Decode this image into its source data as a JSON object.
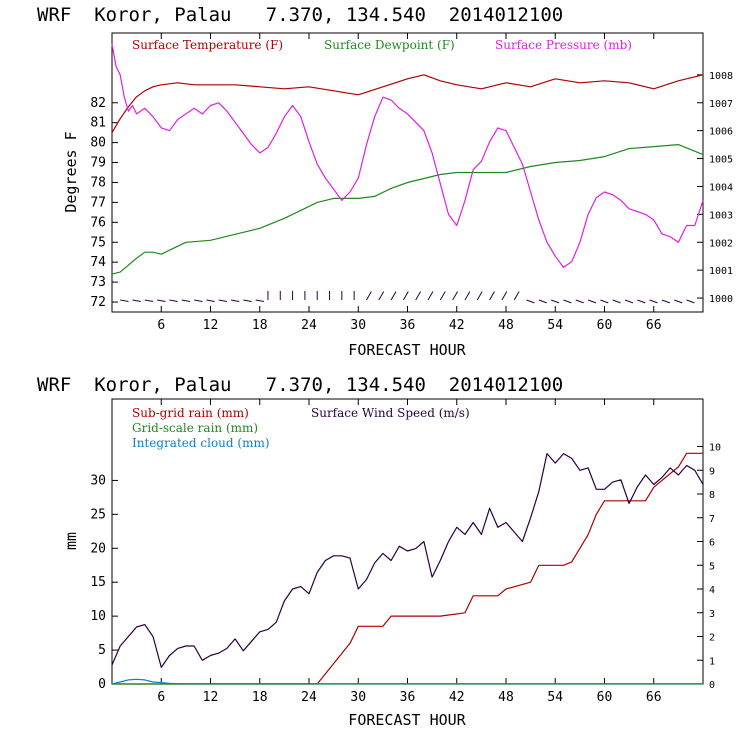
{
  "colors": {
    "temperature": "#b00000",
    "dewpoint": "#1f8a1f",
    "pressure": "#e020e0",
    "wind": "#2a0040",
    "subgrid_rain": "#b00000",
    "gridscale_rain": "#1f8a1f",
    "cloud": "#0a80d0"
  },
  "chart_data": [
    {
      "type": "line",
      "title": "WRF  Koror, Palau   7.370, 134.540  2014012100",
      "xlabel": "FORECAST HOUR",
      "ylabel": "Degrees F",
      "xlim": [
        0,
        72
      ],
      "x_ticks": [
        6,
        12,
        18,
        24,
        30,
        36,
        42,
        48,
        54,
        60,
        66
      ],
      "x_tick_labels": [
        "6",
        "12",
        "18",
        "24",
        "30",
        "36",
        "42",
        "48",
        "54",
        "60",
        "66"
      ],
      "ylim": [
        71.5,
        85.5
      ],
      "y_ticks": [
        72,
        73,
        74,
        75,
        76,
        77,
        78,
        79,
        80,
        81,
        82
      ],
      "y_tick_labels": [
        "72",
        "73",
        "74",
        "75",
        "76",
        "77",
        "78",
        "79",
        "80",
        "81",
        "82"
      ],
      "y2lim": [
        999.5,
        1009.5
      ],
      "y2_ticks": [
        1000,
        1001,
        1002,
        1003,
        1004,
        1005,
        1006,
        1007,
        1008
      ],
      "y2_tick_labels": [
        "1000",
        "1001",
        "1002",
        "1003",
        "1004",
        "1005",
        "1006",
        "1007",
        "1008"
      ],
      "legend": [
        "Surface Temperature (F)",
        "Surface Dewpoint (F)",
        "Surface Pressure (mb)"
      ],
      "grid": false,
      "series": [
        {
          "name": "Surface Temperature (F)",
          "axis": "left",
          "x": [
            0,
            1,
            2,
            3,
            4,
            5,
            6,
            8,
            10,
            12,
            15,
            18,
            21,
            24,
            27,
            30,
            33,
            36,
            38,
            40,
            42,
            45,
            48,
            51,
            54,
            57,
            60,
            63,
            66,
            69,
            72
          ],
          "values": [
            80.5,
            81.2,
            81.8,
            82.3,
            82.6,
            82.8,
            82.9,
            83.0,
            82.9,
            82.9,
            82.9,
            82.8,
            82.7,
            82.8,
            82.6,
            82.4,
            82.8,
            83.2,
            83.4,
            83.1,
            82.9,
            82.7,
            83.0,
            82.8,
            83.2,
            83.0,
            83.1,
            83.0,
            82.7,
            83.1,
            83.4
          ]
        },
        {
          "name": "Surface Dewpoint (F)",
          "axis": "left",
          "x": [
            0,
            1,
            3,
            4,
            5,
            6,
            7,
            9,
            12,
            15,
            18,
            21,
            23,
            25,
            27,
            30,
            32,
            34,
            36,
            38,
            40,
            42,
            45,
            48,
            51,
            54,
            57,
            60,
            63,
            66,
            69,
            72
          ],
          "values": [
            73.4,
            73.5,
            74.2,
            74.5,
            74.5,
            74.4,
            74.6,
            75.0,
            75.1,
            75.4,
            75.7,
            76.2,
            76.6,
            77.0,
            77.2,
            77.2,
            77.3,
            77.7,
            78.0,
            78.2,
            78.4,
            78.5,
            78.5,
            78.5,
            78.8,
            79.0,
            79.1,
            79.3,
            79.7,
            79.8,
            79.9,
            79.4
          ]
        },
        {
          "name": "Surface Pressure (mb)",
          "axis": "right",
          "x": [
            0,
            0.5,
            1,
            1.5,
            2,
            2.5,
            3,
            4,
            5,
            6,
            7,
            8,
            9,
            10,
            11,
            12,
            13,
            14,
            15,
            16,
            17,
            18,
            19,
            20,
            21,
            22,
            23,
            24,
            25,
            26,
            27,
            28,
            29,
            30,
            31,
            32,
            33,
            34,
            35,
            36,
            37,
            38,
            39,
            40,
            41,
            42,
            43,
            44,
            45,
            46,
            47,
            48,
            49,
            50,
            51,
            52,
            53,
            54,
            55,
            56,
            57,
            58,
            59,
            60,
            61,
            62,
            63,
            64,
            65,
            66,
            67,
            68,
            69,
            70,
            71,
            72
          ],
          "values": [
            1009.1,
            1008.3,
            1008.0,
            1007.2,
            1006.7,
            1006.9,
            1006.6,
            1006.8,
            1006.5,
            1006.1,
            1006.0,
            1006.4,
            1006.6,
            1006.8,
            1006.6,
            1006.9,
            1007.0,
            1006.7,
            1006.3,
            1005.9,
            1005.5,
            1005.2,
            1005.4,
            1005.9,
            1006.5,
            1006.9,
            1006.5,
            1005.6,
            1004.8,
            1004.3,
            1003.9,
            1003.5,
            1003.8,
            1004.3,
            1005.5,
            1006.5,
            1007.2,
            1007.1,
            1006.8,
            1006.6,
            1006.3,
            1006.0,
            1005.2,
            1004.1,
            1003.0,
            1002.6,
            1003.5,
            1004.6,
            1004.9,
            1005.6,
            1006.1,
            1006.0,
            1005.4,
            1004.8,
            1003.8,
            1002.8,
            1002.0,
            1001.5,
            1001.1,
            1001.3,
            1002.0,
            1003.0,
            1003.6,
            1003.8,
            1003.7,
            1003.5,
            1003.2,
            1003.1,
            1003.0,
            1002.8,
            1002.3,
            1002.2,
            1002.0,
            1002.6,
            1002.6,
            1003.5
          ]
        }
      ]
    },
    {
      "type": "line",
      "title": "WRF  Koror, Palau   7.370, 134.540  2014012100",
      "xlabel": "FORECAST HOUR",
      "ylabel": "mm",
      "xlim": [
        0,
        72
      ],
      "x_ticks": [
        6,
        12,
        18,
        24,
        30,
        36,
        42,
        48,
        54,
        60,
        66
      ],
      "x_tick_labels": [
        "6",
        "12",
        "18",
        "24",
        "30",
        "36",
        "42",
        "48",
        "54",
        "60",
        "66"
      ],
      "ylim": [
        0,
        42
      ],
      "y_ticks": [
        0,
        5,
        10,
        15,
        20,
        25,
        30
      ],
      "y_tick_labels": [
        "0",
        "5",
        "10",
        "15",
        "20",
        "25",
        "30"
      ],
      "y2lim": [
        0,
        12
      ],
      "y2_ticks": [
        0,
        1,
        2,
        3,
        4,
        5,
        6,
        7,
        8,
        9,
        10
      ],
      "y2_tick_labels": [
        "0",
        "1",
        "2",
        "3",
        "4",
        "5",
        "6",
        "7",
        "8",
        "9",
        "10"
      ],
      "legend": [
        "Sub-grid rain (mm)",
        "Surface Wind Speed (m/s)",
        "Grid-scale rain (mm)",
        "Integrated cloud (mm)"
      ],
      "grid": false,
      "series": [
        {
          "name": "Sub-grid rain (mm)",
          "axis": "left",
          "x": [
            0,
            25,
            27,
            29,
            30,
            33,
            34,
            36,
            40,
            43,
            44,
            47,
            48,
            51,
            52,
            55,
            56,
            58,
            59,
            60,
            62,
            63,
            65,
            66,
            69,
            70,
            72
          ],
          "values": [
            0,
            0,
            3,
            6,
            8.5,
            8.5,
            10,
            10,
            10,
            10.5,
            13,
            13,
            14,
            15,
            17.5,
            17.5,
            18,
            22,
            25,
            27,
            27,
            27,
            27,
            29,
            32,
            34,
            34
          ]
        },
        {
          "name": "Surface Wind Speed (m/s)",
          "axis": "right",
          "x": [
            0,
            1,
            2,
            3,
            4,
            5,
            6,
            7,
            8,
            9,
            10,
            11,
            12,
            13,
            14,
            15,
            16,
            17,
            18,
            19,
            20,
            21,
            22,
            23,
            24,
            25,
            26,
            27,
            28,
            29,
            30,
            31,
            32,
            33,
            34,
            35,
            36,
            37,
            38,
            39,
            40,
            41,
            42,
            43,
            44,
            45,
            46,
            47,
            48,
            49,
            50,
            51,
            52,
            53,
            54,
            55,
            56,
            57,
            58,
            59,
            60,
            61,
            62,
            63,
            64,
            65,
            66,
            67,
            68,
            69,
            70,
            71,
            72
          ],
          "values": [
            0.8,
            1.6,
            2.0,
            2.4,
            2.5,
            2.0,
            0.7,
            1.2,
            1.5,
            1.6,
            1.6,
            1.0,
            1.2,
            1.3,
            1.5,
            1.9,
            1.4,
            1.8,
            2.2,
            2.3,
            2.6,
            3.5,
            4.0,
            4.1,
            3.8,
            4.7,
            5.2,
            5.4,
            5.4,
            5.3,
            4.0,
            4.4,
            5.1,
            5.5,
            5.2,
            5.8,
            5.6,
            5.7,
            6.0,
            4.5,
            5.2,
            6.0,
            6.6,
            6.3,
            6.8,
            6.3,
            7.4,
            6.6,
            6.8,
            6.4,
            6.0,
            7.0,
            8.1,
            9.7,
            9.3,
            9.7,
            9.5,
            9.0,
            9.1,
            8.2,
            8.2,
            8.5,
            8.6,
            7.6,
            8.3,
            8.8,
            8.4,
            8.7,
            9.1,
            8.8,
            9.2,
            9.0,
            8.4
          ]
        },
        {
          "name": "Grid-scale rain (mm)",
          "axis": "left",
          "x": [
            0,
            72
          ],
          "values": [
            0,
            0
          ]
        },
        {
          "name": "Integrated cloud (mm)",
          "axis": "left",
          "x": [
            0,
            1,
            2,
            3,
            4,
            5,
            6,
            7,
            8,
            72
          ],
          "values": [
            0,
            0.3,
            0.6,
            0.7,
            0.6,
            0.3,
            0.2,
            0.1,
            0.05,
            0.05
          ]
        }
      ]
    }
  ]
}
